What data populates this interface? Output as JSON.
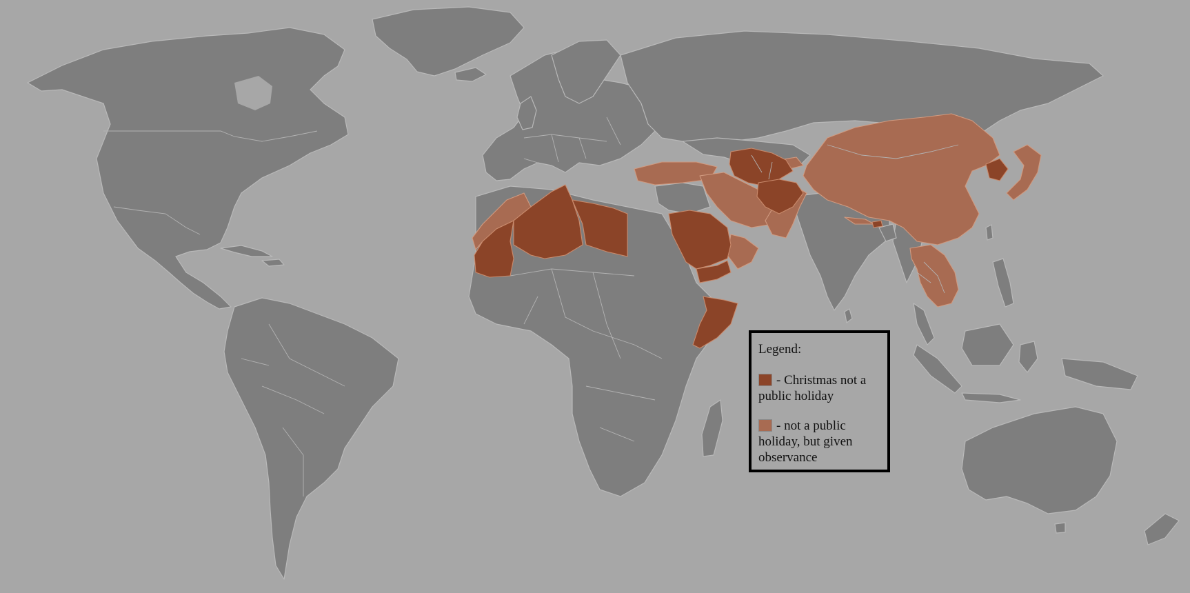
{
  "legend": {
    "title": "Legend:",
    "entries": [
      {
        "label": "- Christmas not a public holiday",
        "color": "#8b4428"
      },
      {
        "label": "- not a public holiday, but given observance",
        "color": "#a86b52"
      }
    ]
  },
  "map": {
    "ocean_color": "#a7a7a7",
    "land_color": "#7e7e7e",
    "categories": {
      "christmas_not_public_holiday": [
        "Mauritania",
        "Western Sahara",
        "Algeria",
        "Libya",
        "Saudi Arabia",
        "Yemen",
        "Somalia",
        "Turkmenistan",
        "Uzbekistan",
        "Tajikistan",
        "Afghanistan",
        "North Korea",
        "Bhutan"
      ],
      "not_public_holiday_given_observance": [
        "Morocco",
        "Turkey",
        "Iran",
        "Pakistan",
        "Oman",
        "UAE",
        "China",
        "Mongolia",
        "Kyrgyzstan",
        "Japan",
        "Laos",
        "Vietnam",
        "Thailand",
        "Cambodia",
        "Nepal"
      ]
    }
  }
}
